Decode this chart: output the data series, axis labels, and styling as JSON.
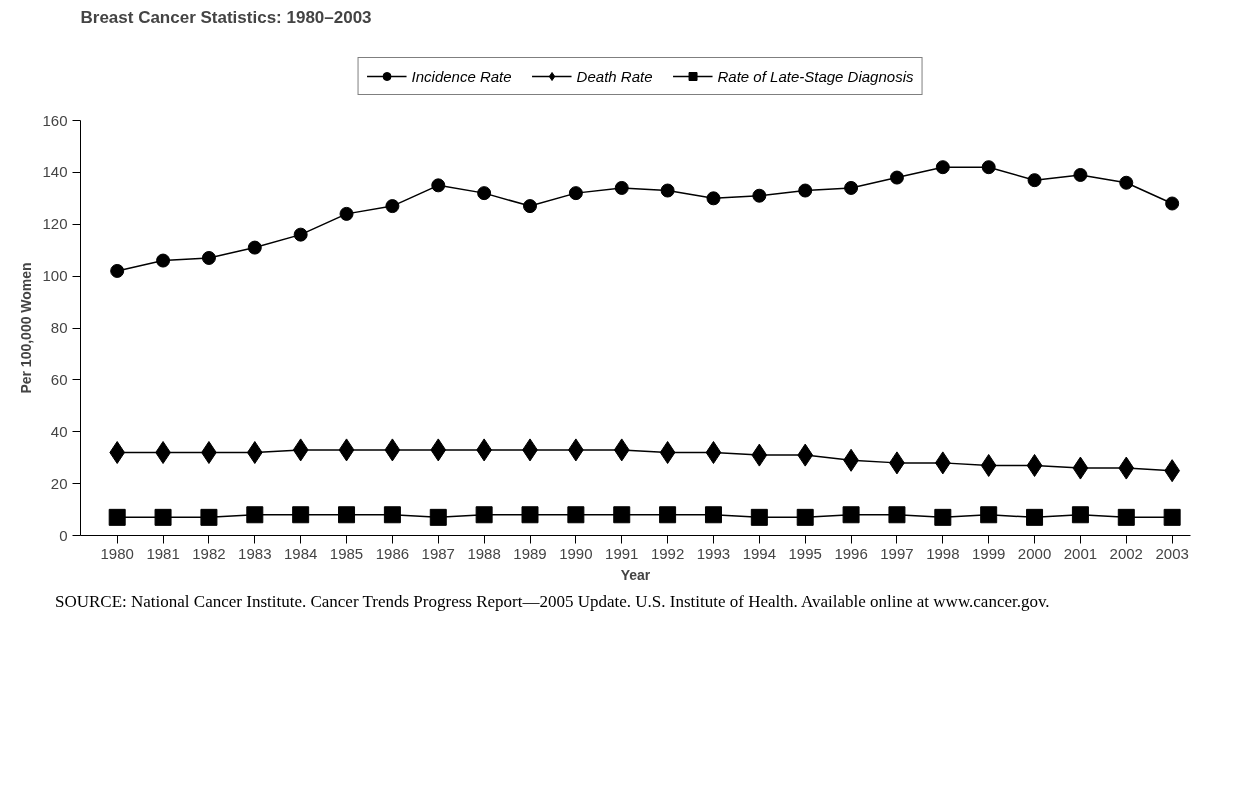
{
  "chart_data": {
    "type": "line",
    "title": "Breast Cancer Statistics: 1980–2003",
    "xlabel": "Year",
    "ylabel": "Per 100,000 Women",
    "categories": [
      "1980",
      "1981",
      "1982",
      "1983",
      "1984",
      "1985",
      "1986",
      "1987",
      "1988",
      "1989",
      "1990",
      "1991",
      "1992",
      "1993",
      "1994",
      "1995",
      "1996",
      "1997",
      "1998",
      "1999",
      "2000",
      "2001",
      "2002",
      "2003"
    ],
    "series": [
      {
        "name": "Incidence Rate",
        "color": "#000000",
        "marker": "circle",
        "values": [
          102,
          106,
          107,
          111,
          116,
          124,
          127,
          135,
          132,
          127,
          132,
          134,
          133,
          130,
          131,
          133,
          134,
          138,
          142,
          142,
          137,
          139,
          136,
          128
        ]
      },
      {
        "name": "Death Rate",
        "color": "#000000",
        "marker": "diamond",
        "values": [
          32,
          32,
          32,
          32,
          33,
          33,
          33,
          33,
          33,
          33,
          33,
          33,
          32,
          32,
          31,
          31,
          29,
          28,
          28,
          27,
          27,
          26,
          26,
          25
        ]
      },
      {
        "name": "Rate of Late-Stage Diagnosis",
        "color": "#000000",
        "marker": "square",
        "values": [
          7,
          7,
          7,
          8,
          8,
          8,
          8,
          7,
          8,
          8,
          8,
          8,
          8,
          8,
          7,
          7,
          8,
          8,
          7,
          8,
          7,
          8,
          7,
          7
        ]
      }
    ],
    "ylim": [
      0,
      160
    ],
    "yticks": [
      0,
      20,
      40,
      60,
      80,
      100,
      120,
      140,
      160
    ],
    "grid": false,
    "legend": "top",
    "line_style": "solid",
    "annotations": [
      "SOURCE: National Cancer Institute. Cancer Trends Progress Report—2005 Update. U.S. Institute of Health. Available online at www.cancer.gov."
    ]
  }
}
